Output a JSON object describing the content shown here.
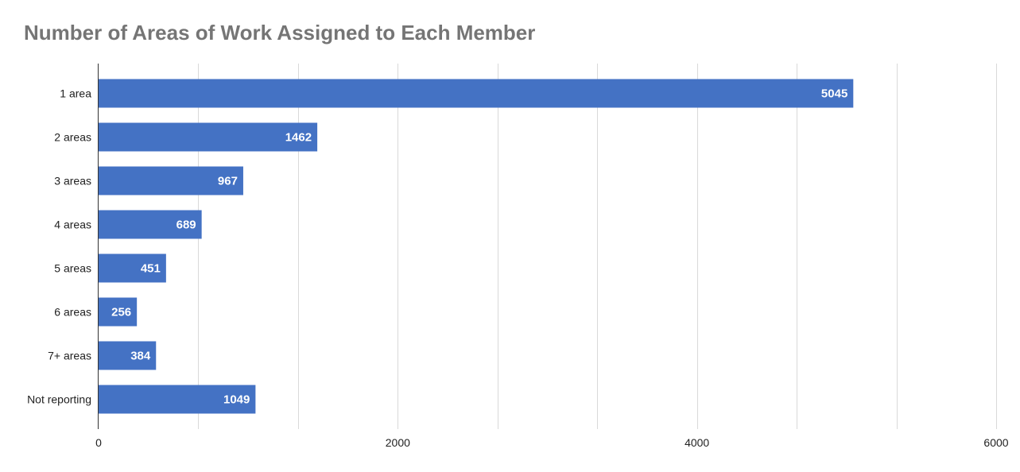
{
  "chart_data": {
    "type": "bar",
    "orientation": "horizontal",
    "title": "Number of Areas of Work Assigned to Each Member",
    "categories": [
      "1 area",
      "2 areas",
      "3 areas",
      "4 areas",
      "5 areas",
      "6 areas",
      "7+ areas",
      "Not reporting"
    ],
    "values": [
      5045,
      1462,
      967,
      689,
      451,
      256,
      384,
      1049
    ],
    "xlim": [
      0,
      6000
    ],
    "x_ticks": [
      0,
      2000,
      4000,
      6000
    ],
    "minor_gridline_step": 666.67,
    "grid": true,
    "legend": "none",
    "data_labels": "inside-end",
    "bar_color": "#4472c4",
    "title_color": "#757575",
    "gridline_color": "#d9d9d9"
  }
}
